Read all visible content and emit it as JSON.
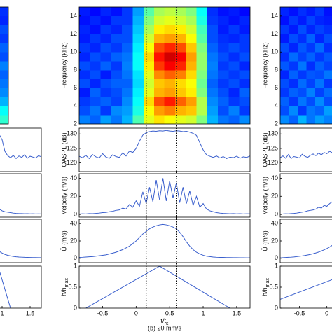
{
  "chart_data": [
    {
      "type": "heatmap",
      "ylabel": "Frequency (kHz)",
      "xlim": [
        -0.85,
        1.7
      ],
      "ylim": [
        2,
        15
      ],
      "yticks": [
        2,
        4,
        6,
        8,
        10,
        12,
        14
      ],
      "colormap": "jet",
      "vlines": [
        0.15,
        0.6
      ],
      "xbins": [
        -0.85,
        -0.69,
        -0.53,
        -0.37,
        -0.21,
        -0.05,
        0.11,
        0.27,
        0.42,
        0.58,
        0.74,
        0.9,
        1.06,
        1.22,
        1.38,
        1.54,
        1.7
      ],
      "ybins": [
        2,
        3,
        4,
        5,
        6,
        7,
        8,
        9,
        10,
        11,
        12,
        13,
        14,
        15
      ],
      "values": [
        [
          0.25,
          0.22,
          0.28,
          0.24,
          0.3,
          0.45,
          0.6,
          0.65,
          0.62,
          0.6,
          0.58,
          0.5,
          0.3,
          0.24,
          0.22,
          0.26
        ],
        [
          0.2,
          0.24,
          0.18,
          0.26,
          0.28,
          0.4,
          0.62,
          0.72,
          0.75,
          0.7,
          0.68,
          0.55,
          0.28,
          0.2,
          0.25,
          0.18
        ],
        [
          0.18,
          0.2,
          0.22,
          0.19,
          0.26,
          0.38,
          0.66,
          0.8,
          0.85,
          0.78,
          0.72,
          0.55,
          0.26,
          0.22,
          0.18,
          0.2
        ],
        [
          0.15,
          0.22,
          0.18,
          0.2,
          0.24,
          0.36,
          0.6,
          0.7,
          0.72,
          0.68,
          0.64,
          0.5,
          0.24,
          0.2,
          0.16,
          0.22
        ],
        [
          0.2,
          0.16,
          0.2,
          0.22,
          0.22,
          0.34,
          0.58,
          0.68,
          0.7,
          0.66,
          0.62,
          0.48,
          0.22,
          0.18,
          0.2,
          0.17
        ],
        [
          0.17,
          0.2,
          0.15,
          0.2,
          0.24,
          0.35,
          0.6,
          0.74,
          0.78,
          0.75,
          0.66,
          0.5,
          0.24,
          0.2,
          0.18,
          0.2
        ],
        [
          0.2,
          0.18,
          0.22,
          0.18,
          0.25,
          0.38,
          0.64,
          0.82,
          0.88,
          0.84,
          0.7,
          0.52,
          0.25,
          0.18,
          0.2,
          0.16
        ],
        [
          0.16,
          0.2,
          0.18,
          0.22,
          0.24,
          0.38,
          0.66,
          0.86,
          0.92,
          0.88,
          0.72,
          0.52,
          0.24,
          0.2,
          0.17,
          0.2
        ],
        [
          0.18,
          0.16,
          0.2,
          0.18,
          0.22,
          0.36,
          0.62,
          0.8,
          0.84,
          0.8,
          0.68,
          0.5,
          0.22,
          0.18,
          0.2,
          0.18
        ],
        [
          0.15,
          0.18,
          0.16,
          0.2,
          0.2,
          0.34,
          0.58,
          0.7,
          0.72,
          0.7,
          0.62,
          0.46,
          0.2,
          0.17,
          0.16,
          0.18
        ],
        [
          0.16,
          0.14,
          0.18,
          0.16,
          0.2,
          0.32,
          0.54,
          0.64,
          0.66,
          0.64,
          0.58,
          0.44,
          0.2,
          0.15,
          0.18,
          0.15
        ],
        [
          0.14,
          0.16,
          0.14,
          0.18,
          0.18,
          0.3,
          0.5,
          0.58,
          0.6,
          0.58,
          0.54,
          0.4,
          0.18,
          0.16,
          0.14,
          0.16
        ],
        [
          0.15,
          0.13,
          0.16,
          0.14,
          0.18,
          0.28,
          0.46,
          0.54,
          0.56,
          0.54,
          0.5,
          0.38,
          0.17,
          0.14,
          0.15,
          0.13
        ]
      ]
    },
    {
      "type": "line",
      "ylabel": "OASPL (dB)",
      "xlim": [
        -0.85,
        1.7
      ],
      "ylim": [
        117,
        132
      ],
      "yticks": [
        120,
        125,
        130
      ],
      "color": "#3a5fcd",
      "vlines": [
        0.15,
        0.6
      ],
      "x": [
        -0.85,
        -0.8,
        -0.75,
        -0.7,
        -0.65,
        -0.6,
        -0.55,
        -0.5,
        -0.45,
        -0.4,
        -0.35,
        -0.3,
        -0.25,
        -0.2,
        -0.15,
        -0.1,
        -0.05,
        0,
        0.05,
        0.1,
        0.15,
        0.2,
        0.25,
        0.3,
        0.35,
        0.4,
        0.45,
        0.5,
        0.55,
        0.6,
        0.65,
        0.7,
        0.75,
        0.8,
        0.85,
        0.9,
        0.95,
        1,
        1.05,
        1.1,
        1.15,
        1.2,
        1.25,
        1.3,
        1.35,
        1.4,
        1.45,
        1.5,
        1.55,
        1.6,
        1.65,
        1.7
      ],
      "values": [
        122.3,
        121.8,
        122.6,
        121.5,
        122.9,
        122.1,
        121.7,
        123.2,
        122,
        121.6,
        122.8,
        122.2,
        121.9,
        123.5,
        122.4,
        124.1,
        123.6,
        125,
        127.5,
        129.6,
        130.4,
        130.8,
        131,
        130.9,
        131.1,
        131,
        131.2,
        131,
        130.9,
        131.1,
        131,
        130.8,
        130.9,
        130.6,
        130.2,
        129.5,
        127,
        124.5,
        122.8,
        122.3,
        121.9,
        122.4,
        121.7,
        122.2,
        121.5,
        122,
        121.8,
        122.3,
        121.6,
        122.1,
        121.9,
        122.4
      ]
    },
    {
      "type": "line",
      "ylabel": "Velocity (m/s)",
      "xlim": [
        -0.85,
        1.7
      ],
      "ylim": [
        -3,
        45
      ],
      "yticks": [
        0,
        20,
        40
      ],
      "color": "#3a5fcd",
      "vlines": [
        0.15,
        0.6
      ],
      "x": [
        -0.85,
        -0.8,
        -0.75,
        -0.7,
        -0.65,
        -0.6,
        -0.55,
        -0.5,
        -0.45,
        -0.4,
        -0.35,
        -0.3,
        -0.25,
        -0.2,
        -0.15,
        -0.1,
        -0.05,
        0,
        0.05,
        0.1,
        0.15,
        0.2,
        0.25,
        0.3,
        0.35,
        0.4,
        0.45,
        0.5,
        0.55,
        0.6,
        0.65,
        0.7,
        0.75,
        0.8,
        0.85,
        0.9,
        0.95,
        1,
        1.05,
        1.1,
        1.15,
        1.2,
        1.25,
        1.3,
        1.35,
        1.4,
        1.45,
        1.5,
        1.55,
        1.6,
        1.65,
        1.7
      ],
      "values": [
        0.5,
        0.8,
        0.6,
        1,
        0.9,
        1.2,
        1.5,
        2,
        2.2,
        3,
        3.5,
        4.5,
        5,
        7,
        6,
        11,
        8,
        15,
        9,
        25,
        12,
        30,
        14,
        38,
        16,
        40,
        15,
        37,
        18,
        35,
        13,
        30,
        12,
        26,
        10,
        20,
        8,
        12,
        6,
        4,
        3,
        2,
        1.5,
        1.2,
        1,
        0.8,
        1,
        0.7,
        0.9,
        0.6,
        0.8,
        0.7
      ]
    },
    {
      "type": "line",
      "ylabel": "Ū (m/s)",
      "xlim": [
        -0.85,
        1.7
      ],
      "ylim": [
        -5,
        45
      ],
      "yticks": [
        0,
        20,
        40
      ],
      "color": "#3a5fcd",
      "vlines": [
        0.15,
        0.6
      ],
      "x": [
        -0.85,
        -0.8,
        -0.75,
        -0.7,
        -0.65,
        -0.6,
        -0.55,
        -0.5,
        -0.45,
        -0.4,
        -0.35,
        -0.3,
        -0.25,
        -0.2,
        -0.15,
        -0.1,
        -0.05,
        0,
        0.05,
        0.1,
        0.15,
        0.2,
        0.25,
        0.3,
        0.35,
        0.4,
        0.45,
        0.5,
        0.55,
        0.6,
        0.65,
        0.7,
        0.75,
        0.8,
        0.85,
        0.9,
        0.95,
        1,
        1.05,
        1.1,
        1.15,
        1.2,
        1.25,
        1.3,
        1.35,
        1.4,
        1.45,
        1.5,
        1.55,
        1.6,
        1.65,
        1.7
      ],
      "values": [
        1,
        1.2,
        1.5,
        1.8,
        2,
        2.5,
        3,
        3.5,
        4,
        5,
        6,
        7,
        8.5,
        10,
        12,
        14,
        17,
        20,
        24,
        28,
        31,
        34,
        36,
        37.5,
        38.5,
        39,
        38.5,
        37.5,
        36,
        34,
        30,
        25,
        19,
        14,
        10,
        7,
        5,
        3.5,
        2.5,
        2,
        1.5,
        1.2,
        1,
        1,
        0.8,
        0.8,
        0.7,
        0.7,
        0.6,
        0.6,
        0.5,
        0.5
      ]
    },
    {
      "type": "line",
      "ylabel": [
        "h/h",
        "max"
      ],
      "xlabel": [
        "t/t",
        "s"
      ],
      "title": "(b) 20 mm/s",
      "xlim": [
        -0.85,
        1.7
      ],
      "ylim": [
        0,
        1
      ],
      "yticks": [
        0,
        0.5,
        1
      ],
      "xticks": [
        -0.5,
        0,
        0.5,
        1,
        1.5
      ],
      "color": "#3a5fcd",
      "vlines": [
        0.15,
        0.6
      ],
      "x": [
        -0.75,
        0.35,
        1.4
      ],
      "values": [
        0,
        1,
        0
      ]
    },
    {
      "type": "heatmap",
      "ylabel": "Frequency (kHz)",
      "xlim": [
        -0.85,
        1.7
      ],
      "ylim": [
        2,
        15
      ],
      "yticks": [
        2,
        4,
        6,
        8,
        10,
        12,
        14
      ],
      "colormap": "jet",
      "xbins": [
        -0.85,
        -0.69,
        -0.53,
        -0.37,
        -0.21,
        -0.05,
        0.11
      ],
      "ybins": [
        2,
        3,
        4,
        5,
        6,
        7,
        8,
        9,
        10,
        11,
        12,
        13,
        14,
        15
      ],
      "values": [
        [
          0.26,
          0.22,
          0.3,
          0.24,
          0.28,
          0.25
        ],
        [
          0.2,
          0.26,
          0.18,
          0.24,
          0.22,
          0.28
        ],
        [
          0.22,
          0.18,
          0.24,
          0.2,
          0.26,
          0.2
        ],
        [
          0.18,
          0.22,
          0.2,
          0.25,
          0.19,
          0.23
        ],
        [
          0.2,
          0.17,
          0.23,
          0.19,
          0.24,
          0.18
        ],
        [
          0.16,
          0.22,
          0.18,
          0.21,
          0.2,
          0.24
        ],
        [
          0.21,
          0.18,
          0.24,
          0.17,
          0.22,
          0.19
        ],
        [
          0.17,
          0.23,
          0.19,
          0.22,
          0.18,
          0.21
        ],
        [
          0.2,
          0.16,
          0.21,
          0.18,
          0.23,
          0.17
        ],
        [
          0.15,
          0.2,
          0.17,
          0.22,
          0.16,
          0.2
        ],
        [
          0.18,
          0.15,
          0.2,
          0.16,
          0.19,
          0.17
        ],
        [
          0.14,
          0.18,
          0.15,
          0.19,
          0.16,
          0.15
        ],
        [
          0.16,
          0.14,
          0.17,
          0.15,
          0.18,
          0.14
        ]
      ]
    },
    {
      "type": "line",
      "ylabel": "OASPL (dB)",
      "xlim": [
        -0.85,
        1.7
      ],
      "ylim": [
        117,
        132
      ],
      "yticks": [
        120,
        125,
        130
      ],
      "color": "#3a5fcd",
      "x": [
        -0.85,
        -0.8,
        -0.75,
        -0.7,
        -0.65,
        -0.6,
        -0.55,
        -0.5,
        -0.45,
        -0.4,
        -0.35,
        -0.3,
        -0.25,
        -0.2,
        -0.15,
        -0.1,
        -0.05,
        0,
        0.05,
        0.1
      ],
      "values": [
        121.8,
        122.4,
        121.6,
        122.9,
        121.5,
        122.2,
        122,
        121.7,
        123,
        122.3,
        121.9,
        122.6,
        123.1,
        122.5,
        123.4,
        122.8,
        123.6,
        123.2,
        124,
        123.5
      ]
    },
    {
      "type": "line",
      "ylabel": "Velocity (m/s)",
      "xlim": [
        -0.85,
        1.7
      ],
      "ylim": [
        -3,
        45
      ],
      "yticks": [
        0,
        20,
        40
      ],
      "color": "#3a5fcd",
      "x": [
        -0.85,
        -0.8,
        -0.75,
        -0.7,
        -0.65,
        -0.6,
        -0.55,
        -0.5,
        -0.45,
        -0.4,
        -0.35,
        -0.3,
        -0.25,
        -0.2,
        -0.15,
        -0.1,
        -0.05,
        0,
        0.05,
        0.1
      ],
      "values": [
        0.5,
        0.6,
        0.8,
        0.7,
        1,
        1.2,
        1.5,
        2,
        2.5,
        3,
        4,
        4.5,
        5,
        6,
        8,
        7,
        10,
        9,
        12,
        14
      ]
    },
    {
      "type": "line",
      "ylabel": "Ū (m/s)",
      "xlim": [
        -0.85,
        1.7
      ],
      "ylim": [
        -5,
        45
      ],
      "yticks": [
        0,
        20,
        40
      ],
      "color": "#3a5fcd",
      "x": [
        -0.85,
        -0.8,
        -0.75,
        -0.7,
        -0.65,
        -0.6,
        -0.55,
        -0.5,
        -0.45,
        -0.4,
        -0.35,
        -0.3,
        -0.25,
        -0.2,
        -0.15,
        -0.1,
        -0.05,
        0,
        0.05,
        0.1
      ],
      "values": [
        0.5,
        0.7,
        0.9,
        1.1,
        1.3,
        1.6,
        2,
        2.4,
        2.8,
        3.3,
        3.9,
        4.5,
        5.3,
        6.2,
        7.2,
        8.4,
        9.8,
        11.3,
        13,
        15
      ]
    },
    {
      "type": "line",
      "ylabel": [
        "h/h",
        "max"
      ],
      "xlim": [
        -0.85,
        1.7
      ],
      "ylim": [
        0,
        1
      ],
      "yticks": [
        0,
        0.5,
        1
      ],
      "xticks": [
        -0.5,
        0
      ],
      "color": "#3a5fcd",
      "x": [
        -0.85,
        0.1
      ],
      "values": [
        0.21,
        0.68
      ]
    },
    {
      "type": "heatmap",
      "xlim": [
        -0.85,
        1.7
      ],
      "ylim": [
        2,
        15
      ],
      "colormap": "jet",
      "xbins": [
        1.54,
        1.7
      ],
      "ybins": [
        2,
        3,
        4,
        5,
        6,
        7,
        8,
        9,
        10,
        11,
        12,
        13,
        14,
        15
      ],
      "values": [
        [
          0.42
        ],
        [
          0.38
        ],
        [
          0.3
        ],
        [
          0.26
        ],
        [
          0.24
        ],
        [
          0.22
        ],
        [
          0.25
        ],
        [
          0.2
        ],
        [
          0.22
        ],
        [
          0.18
        ],
        [
          0.2
        ],
        [
          0.16
        ],
        [
          0.17
        ]
      ]
    },
    {
      "type": "line",
      "xlim": [
        -0.85,
        1.7
      ],
      "ylim": [
        117,
        132
      ],
      "color": "#3a5fcd",
      "x": [
        0.95,
        1,
        1.05,
        1.1,
        1.15,
        1.2,
        1.25,
        1.3,
        1.35,
        1.4,
        1.45,
        1.5,
        1.55,
        1.6,
        1.65,
        1.7
      ],
      "values": [
        129.8,
        128,
        124,
        122.5,
        121.8,
        122.6,
        121.5,
        122.4,
        121.9,
        122.8,
        121.6,
        122.3,
        122,
        121.7,
        122.5,
        122.1
      ]
    },
    {
      "type": "line",
      "xlim": [
        -0.85,
        1.7
      ],
      "ylim": [
        -3,
        45
      ],
      "color": "#3a5fcd",
      "x": [
        0.95,
        1,
        1.05,
        1.1,
        1.15,
        1.2,
        1.25,
        1.3,
        1.35,
        1.4,
        1.45,
        1.5,
        1.55,
        1.6,
        1.65,
        1.7
      ],
      "values": [
        6,
        4,
        3,
        2.5,
        2,
        1.5,
        1.2,
        1,
        1,
        0.8,
        0.9,
        0.7,
        0.8,
        0.6,
        0.7,
        0.6
      ]
    },
    {
      "type": "line",
      "xlim": [
        -0.85,
        1.7
      ],
      "ylim": [
        -5,
        45
      ],
      "color": "#3a5fcd",
      "x": [
        0.95,
        1,
        1.05,
        1.1,
        1.15,
        1.2,
        1.25,
        1.3,
        1.35,
        1.4,
        1.45,
        1.5,
        1.55,
        1.6,
        1.65,
        1.7
      ],
      "values": [
        8,
        6,
        4.5,
        3.5,
        2.8,
        2.2,
        1.8,
        1.5,
        1.3,
        1.1,
        1,
        0.9,
        0.8,
        0.8,
        0.7,
        0.7
      ]
    },
    {
      "type": "line",
      "xlim": [
        -0.85,
        1.7
      ],
      "ylim": [
        0,
        1
      ],
      "xticks": [
        1,
        1.5
      ],
      "color": "#3a5fcd",
      "x": [
        0.95,
        1.15
      ],
      "values": [
        0.9,
        0
      ]
    }
  ]
}
